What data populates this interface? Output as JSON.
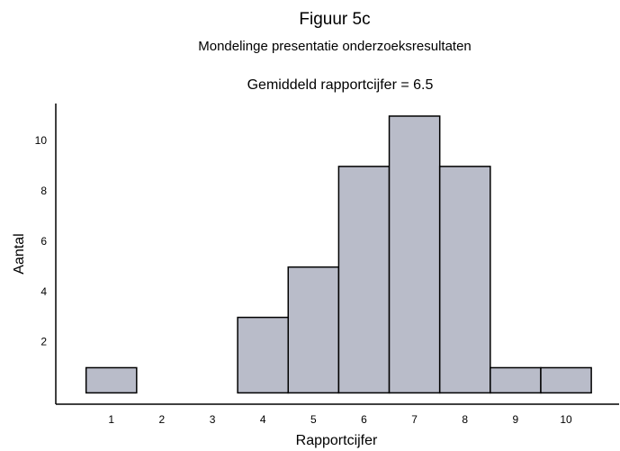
{
  "chart_data": {
    "type": "histogram",
    "title": "Figuur 5c",
    "subtitle": "Mondelinge presentatie onderzoeksresultaten",
    "annotation": "Gemiddeld rapportcijfer = 6.5",
    "x_label": "Rapportcijfer",
    "y_label": "Aantal",
    "bins": [
      0.5,
      1.5,
      2.5,
      3.5,
      4.5,
      5.5,
      6.5,
      7.5,
      8.5,
      9.5,
      10.5
    ],
    "values": [
      1,
      0,
      0,
      3,
      5,
      9,
      11,
      9,
      1,
      1
    ],
    "color": "#b9bcc9",
    "xlim": [
      -0.1,
      11.05
    ],
    "ylim": [
      -0.45,
      11.5
    ],
    "xticks": [
      1,
      2,
      3,
      4,
      5,
      6,
      7,
      8,
      9,
      10
    ],
    "yticks": [
      2,
      4,
      6,
      8,
      10
    ],
    "grid": false
  }
}
